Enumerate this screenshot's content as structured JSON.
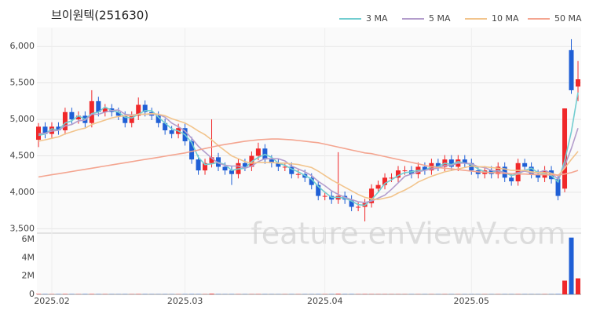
{
  "chart_data": {
    "type": "candlestick",
    "title": "브이원텍(251630)",
    "watermark": "feature.enViewV.com",
    "up_color": "#f0282a",
    "down_color": "#1f5fd6",
    "categories": [
      null,
      null,
      "2025.02",
      null,
      null,
      null,
      null,
      null,
      null,
      null,
      null,
      null,
      null,
      null,
      null,
      null,
      null,
      null,
      null,
      null,
      null,
      null,
      "2025.03",
      null,
      null,
      null,
      null,
      null,
      null,
      null,
      null,
      null,
      null,
      null,
      null,
      null,
      null,
      null,
      null,
      null,
      null,
      null,
      null,
      "2025.04",
      null,
      null,
      null,
      null,
      null,
      null,
      null,
      null,
      null,
      null,
      null,
      null,
      null,
      null,
      null,
      null,
      null,
      null,
      null,
      null,
      null,
      "2025.05",
      null,
      null,
      null,
      null,
      null,
      null,
      null,
      null,
      null,
      null,
      null,
      null,
      null,
      null,
      null,
      null
    ],
    "open": [
      4720,
      4900,
      4800,
      4900,
      4850,
      5100,
      5000,
      5050,
      4950,
      5250,
      5100,
      5150,
      5100,
      5050,
      4950,
      5050,
      5200,
      5100,
      5050,
      4950,
      4850,
      4800,
      4880,
      4700,
      4450,
      4300,
      4400,
      4480,
      4350,
      4300,
      4250,
      4400,
      4350,
      4500,
      4600,
      4450,
      4400,
      4350,
      4350,
      4250,
      4250,
      4200,
      4100,
      3950,
      3950,
      3900,
      3950,
      3900,
      3800,
      3800,
      3850,
      4050,
      4100,
      4200,
      4200,
      4300,
      4300,
      4250,
      4350,
      4300,
      4400,
      4350,
      4450,
      4350,
      4450,
      4400,
      4300,
      4250,
      4300,
      4250,
      4350,
      4200,
      4150,
      4400,
      4350,
      4250,
      4200,
      4300,
      4180,
      4050,
      5950,
      5450
    ],
    "high": [
      4950,
      4960,
      4960,
      4960,
      5160,
      5160,
      5110,
      5110,
      5400,
      5310,
      5210,
      5210,
      5160,
      5110,
      5110,
      5300,
      5260,
      5160,
      5110,
      5010,
      4910,
      4940,
      4940,
      4760,
      4510,
      4460,
      5000,
      4540,
      4410,
      4360,
      4460,
      4460,
      4560,
      4680,
      4660,
      4510,
      4460,
      4410,
      4410,
      4310,
      4310,
      4260,
      4160,
      4010,
      4010,
      4550,
      4010,
      3960,
      3860,
      3910,
      4110,
      4160,
      4260,
      4260,
      4360,
      4360,
      4360,
      4410,
      4410,
      4460,
      4460,
      4510,
      4510,
      4510,
      4510,
      4460,
      4360,
      4360,
      4360,
      4410,
      4410,
      4260,
      4460,
      4460,
      4410,
      4310,
      4360,
      4360,
      4240,
      5150,
      6100,
      5800
    ],
    "low": [
      4620,
      4740,
      4740,
      4790,
      4790,
      4940,
      4940,
      4890,
      4890,
      5040,
      5040,
      5040,
      4990,
      4890,
      4890,
      4990,
      5040,
      4990,
      4890,
      4790,
      4740,
      4740,
      4640,
      4390,
      4240,
      4240,
      4340,
      4290,
      4240,
      4100,
      4190,
      4290,
      4290,
      4440,
      4390,
      4340,
      4290,
      4290,
      4190,
      4190,
      4140,
      4040,
      3890,
      3890,
      3840,
      3840,
      3840,
      3740,
      3740,
      3600,
      3790,
      3990,
      4040,
      4140,
      4140,
      4240,
      4190,
      4190,
      4240,
      4240,
      4290,
      4290,
      4290,
      4290,
      4340,
      4240,
      4190,
      4190,
      4190,
      4190,
      4140,
      4090,
      4090,
      4290,
      4190,
      4140,
      4140,
      4120,
      3890,
      4000,
      5350,
      5250
    ],
    "close": [
      4900,
      4800,
      4900,
      4850,
      5100,
      5000,
      5050,
      4950,
      5250,
      5100,
      5150,
      5100,
      5050,
      4950,
      5050,
      5200,
      5100,
      5050,
      4950,
      4850,
      4800,
      4880,
      4700,
      4450,
      4300,
      4400,
      4480,
      4350,
      4300,
      4250,
      4400,
      4350,
      4500,
      4600,
      4450,
      4400,
      4350,
      4350,
      4250,
      4250,
      4200,
      4100,
      3950,
      3950,
      3900,
      3950,
      3900,
      3800,
      3800,
      3850,
      4050,
      4100,
      4200,
      4200,
      4300,
      4300,
      4250,
      4350,
      4300,
      4400,
      4350,
      4450,
      4350,
      4450,
      4400,
      4300,
      4250,
      4300,
      4250,
      4350,
      4200,
      4150,
      4400,
      4350,
      4250,
      4200,
      4300,
      4180,
      3950,
      5150,
      5400,
      5550
    ],
    "volume": [
      45000,
      30000,
      28000,
      32000,
      40000,
      30000,
      26000,
      35000,
      42000,
      30000,
      28000,
      25000,
      24000,
      27000,
      26000,
      38000,
      30000,
      25000,
      22000,
      26000,
      24000,
      22000,
      28000,
      35000,
      30000,
      24000,
      70000,
      30000,
      24000,
      28000,
      26000,
      22000,
      25000,
      32000,
      26000,
      22000,
      20000,
      21000,
      23000,
      22000,
      24000,
      25000,
      30000,
      26000,
      28000,
      60000,
      30000,
      32000,
      26000,
      35000,
      30000,
      28000,
      26000,
      24000,
      25000,
      22000,
      20000,
      22000,
      20000,
      23000,
      21000,
      24000,
      22000,
      23000,
      21000,
      22000,
      20000,
      21000,
      20000,
      22000,
      24000,
      22000,
      26000,
      23000,
      22000,
      21000,
      24000,
      26000,
      40000,
      1500000,
      6200000,
      1750000
    ],
    "series": [
      {
        "name": "3 MA",
        "color": "#72cdd0",
        "values": [
          4780,
          4800,
          4870,
          4850,
          4950,
          4980,
          5050,
          5000,
          5080,
          5100,
          5170,
          5120,
          5100,
          5030,
          5020,
          5070,
          5120,
          5120,
          5030,
          4950,
          4870,
          4840,
          4790,
          4680,
          4480,
          4380,
          4390,
          4410,
          4380,
          4300,
          4320,
          4330,
          4420,
          4480,
          4520,
          4480,
          4400,
          4370,
          4320,
          4280,
          4230,
          4180,
          4080,
          4000,
          3930,
          3930,
          3920,
          3880,
          3830,
          3820,
          3900,
          4000,
          4120,
          4170,
          4230,
          4270,
          4280,
          4300,
          4300,
          4350,
          4350,
          4400,
          4380,
          4420,
          4400,
          4380,
          4320,
          4280,
          4270,
          4300,
          4270,
          4230,
          4250,
          4300,
          4330,
          4270,
          4250,
          4230,
          4140,
          4430,
          4830,
          5370
        ]
      },
      {
        "name": "5 MA",
        "color": "#b39dcc",
        "values": [
          4800,
          4810,
          4840,
          4850,
          4910,
          4930,
          4980,
          4990,
          5070,
          5070,
          5100,
          5120,
          5130,
          5070,
          5060,
          5070,
          5070,
          5070,
          5070,
          5030,
          4950,
          4900,
          4840,
          4740,
          4630,
          4550,
          4470,
          4400,
          4370,
          4360,
          4360,
          4330,
          4360,
          4420,
          4460,
          4460,
          4460,
          4430,
          4360,
          4320,
          4280,
          4230,
          4150,
          4090,
          4020,
          3970,
          3930,
          3900,
          3870,
          3860,
          3880,
          3920,
          3960,
          4040,
          4130,
          4220,
          4250,
          4280,
          4300,
          4320,
          4330,
          4370,
          4370,
          4400,
          4400,
          4390,
          4350,
          4340,
          4300,
          4290,
          4270,
          4250,
          4270,
          4290,
          4270,
          4270,
          4300,
          4260,
          4180,
          4360,
          4600,
          4880
        ]
      },
      {
        "name": "10 MA",
        "color": "#f2c48c",
        "values": [
          4700,
          4720,
          4740,
          4760,
          4800,
          4830,
          4860,
          4880,
          4930,
          4960,
          4990,
          5020,
          5040,
          5050,
          5050,
          5070,
          5070,
          5080,
          5070,
          5050,
          5010,
          4980,
          4950,
          4900,
          4840,
          4790,
          4720,
          4640,
          4570,
          4500,
          4460,
          4420,
          4400,
          4410,
          4410,
          4410,
          4400,
          4400,
          4390,
          4380,
          4360,
          4340,
          4290,
          4230,
          4170,
          4120,
          4070,
          4020,
          3970,
          3930,
          3910,
          3900,
          3920,
          3940,
          3990,
          4030,
          4080,
          4140,
          4180,
          4220,
          4250,
          4280,
          4300,
          4320,
          4340,
          4360,
          4350,
          4350,
          4340,
          4330,
          4320,
          4300,
          4300,
          4300,
          4280,
          4270,
          4270,
          4260,
          4230,
          4330,
          4450,
          4560
        ]
      },
      {
        "name": "50 MA",
        "color": "#f4a590",
        "values": [
          4210,
          4225,
          4240,
          4255,
          4270,
          4285,
          4300,
          4315,
          4330,
          4345,
          4360,
          4375,
          4390,
          4405,
          4420,
          4435,
          4450,
          4465,
          4480,
          4495,
          4510,
          4525,
          4540,
          4560,
          4580,
          4600,
          4620,
          4640,
          4655,
          4670,
          4685,
          4700,
          4710,
          4720,
          4725,
          4730,
          4730,
          4725,
          4720,
          4710,
          4700,
          4690,
          4680,
          4660,
          4640,
          4620,
          4600,
          4580,
          4560,
          4540,
          4530,
          4510,
          4490,
          4470,
          4450,
          4430,
          4410,
          4390,
          4370,
          4350,
          4340,
          4330,
          4320,
          4310,
          4300,
          4290,
          4280,
          4275,
          4270,
          4265,
          4260,
          4255,
          4250,
          4250,
          4245,
          4240,
          4240,
          4240,
          4235,
          4250,
          4270,
          4300
        ]
      }
    ],
    "ylim": [
      3450,
      6250
    ],
    "yticks": [
      {
        "value": 3500,
        "label": "3,500"
      },
      {
        "value": 4000,
        "label": "4,000"
      },
      {
        "value": 4500,
        "label": "4,500"
      },
      {
        "value": 5000,
        "label": "5,000"
      },
      {
        "value": 5500,
        "label": "5,500"
      },
      {
        "value": 6000,
        "label": "6,000"
      }
    ],
    "volume_ylim": [
      0,
      6600000
    ],
    "volume_yticks": [
      0,
      {
        "value": 2000000,
        "label": "2M"
      },
      {
        "value": 4000000,
        "label": "4M"
      },
      {
        "value": 6000000,
        "label": "6M"
      }
    ],
    "grid": true
  }
}
